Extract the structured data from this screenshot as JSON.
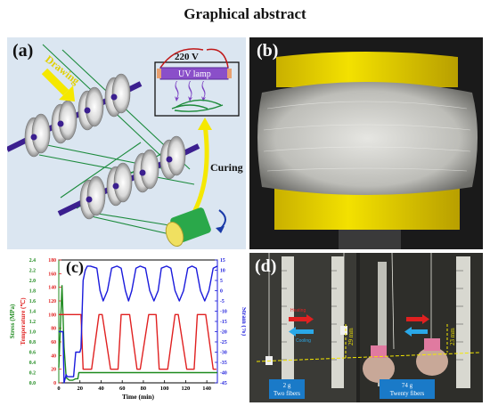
{
  "header": {
    "title": "Graphical abstract"
  },
  "panel_a": {
    "label": "(a)",
    "drawing_label": "Drawing",
    "voltage_label": "220 V",
    "lamp_label": "UV lamp",
    "curing_label": "Curing"
  },
  "panel_b": {
    "label": "(b)"
  },
  "panel_c": {
    "label": "(c)"
  },
  "panel_d": {
    "label": "(d)",
    "heating_label": "Heating",
    "cooling_label": "Cooling",
    "left_measure": "29 mm",
    "right_measure": "23 mm",
    "left_caption_1": "2 g",
    "left_caption_2": "Two fibers",
    "right_caption_1": "74 g",
    "right_caption_2": "Twenty fibers"
  },
  "colors": {
    "stress": "#1e8a1e",
    "temperature": "#e02020",
    "strain": "#1a1adc",
    "shaft": "#3b1f8f",
    "lamp": "#8a4fc9"
  },
  "chart_data": {
    "type": "line",
    "title": "",
    "xlabel": "Time (min)",
    "xlim": [
      0,
      150
    ],
    "x_ticks": [
      0,
      20,
      40,
      60,
      80,
      100,
      120,
      140
    ],
    "axes": [
      {
        "label": "Stress (MPa)",
        "side": "left-outer",
        "ylim": [
          0,
          2.4
        ],
        "ticks": [
          "0.0",
          "0.2",
          "0.4",
          "0.6",
          "0.8",
          "1.0",
          "1.2",
          "1.4",
          "1.6",
          "1.8",
          "2.0",
          "2.2",
          "2.4"
        ]
      },
      {
        "label": "Temperature (℃)",
        "side": "left-inner",
        "ylim": [
          0,
          180
        ],
        "ticks": [
          "0",
          "20",
          "40",
          "60",
          "80",
          "100",
          "120",
          "140",
          "160",
          "180"
        ]
      },
      {
        "label": "Strain (%)",
        "side": "right",
        "ylim": [
          -45,
          15
        ],
        "ticks": [
          "-45",
          "-40",
          "-35",
          "-30",
          "-25",
          "-20",
          "-15",
          "-10",
          "-5",
          "0",
          "5",
          "10",
          "15"
        ]
      }
    ],
    "series": [
      {
        "axis": 0,
        "x": [
          0,
          3,
          5,
          7,
          10,
          13,
          16,
          18,
          19,
          20,
          30,
          150
        ],
        "y": [
          0.3,
          1.9,
          0.7,
          0.1,
          0.05,
          0.05,
          0.08,
          0.08,
          0.2,
          0.2,
          0.2,
          0.2
        ]
      },
      {
        "axis": 1,
        "x": [
          0,
          5,
          7,
          18,
          21,
          23,
          31,
          38,
          41,
          49,
          56,
          59,
          67,
          74,
          77,
          85,
          92,
          95,
          103,
          110,
          113,
          121,
          128,
          131,
          139,
          146,
          149
        ],
        "y": [
          100,
          100,
          100,
          100,
          100,
          20,
          20,
          100,
          100,
          20,
          20,
          100,
          100,
          20,
          20,
          100,
          100,
          20,
          20,
          100,
          100,
          20,
          20,
          100,
          100,
          20,
          20
        ]
      },
      {
        "axis": 2,
        "x": [
          0,
          4,
          5,
          6,
          7,
          8,
          12,
          14,
          16,
          20,
          21,
          23,
          25,
          27,
          30,
          36,
          39,
          42,
          46,
          50,
          55,
          59,
          63,
          66,
          69,
          73,
          77,
          82,
          86,
          90,
          94,
          97,
          102,
          106,
          110,
          114,
          118,
          122,
          126,
          130,
          134,
          138,
          142,
          146,
          150
        ],
        "y": [
          -20,
          -20,
          -45,
          -43,
          -41,
          -42,
          -42,
          -42,
          -30,
          -30,
          -28,
          5,
          10,
          12,
          12,
          11,
          0,
          -5,
          0,
          11,
          12,
          11,
          0,
          -5,
          0,
          11,
          12,
          11,
          0,
          -5,
          0,
          11,
          12,
          11,
          0,
          -5,
          0,
          11,
          12,
          11,
          0,
          -5,
          0,
          11,
          12
        ]
      }
    ]
  }
}
